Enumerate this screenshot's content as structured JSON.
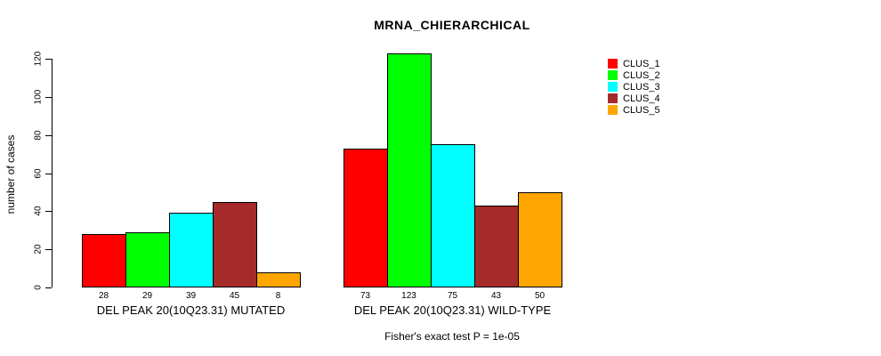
{
  "chart_data": {
    "type": "bar",
    "title": "MRNA_CHIERARCHICAL",
    "ylabel": "number of cases",
    "annotation": "Fisher's exact test P = 1e-05",
    "ylim": [
      0,
      120
    ],
    "yticks": [
      0,
      20,
      40,
      60,
      80,
      100,
      120
    ],
    "grid": false,
    "legend_position": "top-right",
    "categories": [
      "DEL PEAK 20(10Q23.31) MUTATED",
      "DEL PEAK 20(10Q23.31) WILD-TYPE"
    ],
    "series": [
      {
        "name": "CLUS_1",
        "color": "#ff0000",
        "values": [
          28,
          73
        ]
      },
      {
        "name": "CLUS_2",
        "color": "#00ff00",
        "values": [
          29,
          123
        ]
      },
      {
        "name": "CLUS_3",
        "color": "#00ffff",
        "values": [
          39,
          75
        ]
      },
      {
        "name": "CLUS_4",
        "color": "#a52a2a",
        "values": [
          45,
          43
        ]
      },
      {
        "name": "CLUS_5",
        "color": "#ffa500",
        "values": [
          8,
          50
        ]
      }
    ],
    "bar_border_color": "#000000",
    "background": "#ffffff"
  }
}
